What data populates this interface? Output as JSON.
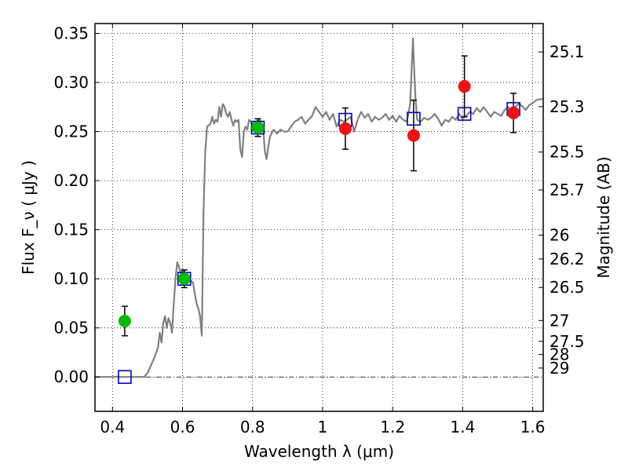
{
  "chart_data": {
    "type": "scatter",
    "xlabel": "Wavelength  λ (μm)",
    "ylabel": "Flux  F_ν  ( μJy )",
    "ylabel_right": "Magnitude (AB)",
    "xlim": [
      0.35,
      1.63
    ],
    "ylim": [
      -0.035,
      0.36
    ],
    "x_ticks": [
      0.4,
      0.6,
      0.8,
      1.0,
      1.2,
      1.4,
      1.6
    ],
    "x_tick_labels": [
      "0.4",
      "0.6",
      "0.8",
      "1",
      "1.2",
      "1.4",
      "1.6"
    ],
    "y_ticks": [
      0.0,
      0.05,
      0.1,
      0.15,
      0.2,
      0.25,
      0.3,
      0.35
    ],
    "y_tick_labels": [
      "0.00",
      "0.05",
      "0.10",
      "0.15",
      "0.20",
      "0.25",
      "0.30",
      "0.35"
    ],
    "mag_ticks": [
      {
        "label": "25.1",
        "flux": 0.3311
      },
      {
        "label": "25.3",
        "flux": 0.2754
      },
      {
        "label": "25.5",
        "flux": 0.2291
      },
      {
        "label": "25.7",
        "flux": 0.1905
      },
      {
        "label": "26",
        "flux": 0.1445
      },
      {
        "label": "26.2",
        "flux": 0.1202
      },
      {
        "label": "26.5",
        "flux": 0.0912
      },
      {
        "label": "27",
        "flux": 0.0575
      },
      {
        "label": "27.5",
        "flux": 0.0363
      },
      {
        "label": "28",
        "flux": 0.0229
      },
      {
        "label": "29",
        "flux": 0.0091
      }
    ],
    "grid": true,
    "series": [
      {
        "type": "line",
        "color": "#808080",
        "points": [
          [
            0.35,
            0.0
          ],
          [
            0.49,
            0.0
          ],
          [
            0.5,
            0.004
          ],
          [
            0.51,
            0.012
          ],
          [
            0.52,
            0.02
          ],
          [
            0.53,
            0.03
          ],
          [
            0.535,
            0.045
          ],
          [
            0.54,
            0.035
          ],
          [
            0.545,
            0.055
          ],
          [
            0.55,
            0.062
          ],
          [
            0.555,
            0.05
          ],
          [
            0.56,
            0.06
          ],
          [
            0.565,
            0.055
          ],
          [
            0.57,
            0.045
          ],
          [
            0.575,
            0.075
          ],
          [
            0.58,
            0.1
          ],
          [
            0.585,
            0.117
          ],
          [
            0.59,
            0.112
          ],
          [
            0.595,
            0.105
          ],
          [
            0.6,
            0.11
          ],
          [
            0.605,
            0.105
          ],
          [
            0.61,
            0.1
          ],
          [
            0.615,
            0.097
          ],
          [
            0.62,
            0.1
          ],
          [
            0.625,
            0.098
          ],
          [
            0.63,
            0.096
          ],
          [
            0.635,
            0.085
          ],
          [
            0.64,
            0.075
          ],
          [
            0.645,
            0.07
          ],
          [
            0.65,
            0.062
          ],
          [
            0.655,
            0.042
          ],
          [
            0.66,
            0.17
          ],
          [
            0.665,
            0.23
          ],
          [
            0.67,
            0.255
          ],
          [
            0.68,
            0.258
          ],
          [
            0.685,
            0.265
          ],
          [
            0.69,
            0.258
          ],
          [
            0.695,
            0.262
          ],
          [
            0.7,
            0.26
          ],
          [
            0.705,
            0.275
          ],
          [
            0.71,
            0.265
          ],
          [
            0.715,
            0.278
          ],
          [
            0.72,
            0.275
          ],
          [
            0.725,
            0.268
          ],
          [
            0.73,
            0.265
          ],
          [
            0.735,
            0.27
          ],
          [
            0.74,
            0.262
          ],
          [
            0.745,
            0.256
          ],
          [
            0.75,
            0.262
          ],
          [
            0.755,
            0.26
          ],
          [
            0.76,
            0.262
          ],
          [
            0.765,
            0.232
          ],
          [
            0.77,
            0.224
          ],
          [
            0.775,
            0.25
          ],
          [
            0.78,
            0.255
          ],
          [
            0.785,
            0.252
          ],
          [
            0.79,
            0.262
          ],
          [
            0.8,
            0.258
          ],
          [
            0.81,
            0.26
          ],
          [
            0.82,
            0.262
          ],
          [
            0.83,
            0.254
          ],
          [
            0.835,
            0.23
          ],
          [
            0.84,
            0.222
          ],
          [
            0.845,
            0.235
          ],
          [
            0.85,
            0.245
          ],
          [
            0.86,
            0.252
          ],
          [
            0.87,
            0.248
          ],
          [
            0.88,
            0.252
          ],
          [
            0.89,
            0.25
          ],
          [
            0.9,
            0.25
          ],
          [
            0.91,
            0.255
          ],
          [
            0.92,
            0.26
          ],
          [
            0.93,
            0.262
          ],
          [
            0.94,
            0.265
          ],
          [
            0.95,
            0.258
          ],
          [
            0.96,
            0.262
          ],
          [
            0.97,
            0.266
          ],
          [
            0.98,
            0.275
          ],
          [
            0.99,
            0.27
          ],
          [
            1.0,
            0.265
          ],
          [
            1.01,
            0.27
          ],
          [
            1.02,
            0.262
          ],
          [
            1.03,
            0.268
          ],
          [
            1.04,
            0.255
          ],
          [
            1.05,
            0.262
          ],
          [
            1.06,
            0.26
          ],
          [
            1.07,
            0.262
          ],
          [
            1.08,
            0.265
          ],
          [
            1.09,
            0.25
          ],
          [
            1.1,
            0.262
          ],
          [
            1.11,
            0.27
          ],
          [
            1.12,
            0.264
          ],
          [
            1.13,
            0.268
          ],
          [
            1.14,
            0.26
          ],
          [
            1.15,
            0.265
          ],
          [
            1.16,
            0.262
          ],
          [
            1.17,
            0.264
          ],
          [
            1.18,
            0.268
          ],
          [
            1.19,
            0.262
          ],
          [
            1.2,
            0.266
          ],
          [
            1.21,
            0.26
          ],
          [
            1.22,
            0.266
          ],
          [
            1.23,
            0.262
          ],
          [
            1.24,
            0.26
          ],
          [
            1.245,
            0.268
          ],
          [
            1.25,
            0.278
          ],
          [
            1.255,
            0.32
          ],
          [
            1.258,
            0.345
          ],
          [
            1.262,
            0.31
          ],
          [
            1.265,
            0.285
          ],
          [
            1.27,
            0.262
          ],
          [
            1.28,
            0.26
          ],
          [
            1.29,
            0.264
          ],
          [
            1.3,
            0.262
          ],
          [
            1.31,
            0.264
          ],
          [
            1.32,
            0.268
          ],
          [
            1.33,
            0.263
          ],
          [
            1.34,
            0.256
          ],
          [
            1.35,
            0.262
          ],
          [
            1.36,
            0.26
          ],
          [
            1.37,
            0.265
          ],
          [
            1.38,
            0.262
          ],
          [
            1.39,
            0.268
          ],
          [
            1.4,
            0.263
          ],
          [
            1.41,
            0.266
          ],
          [
            1.42,
            0.27
          ],
          [
            1.43,
            0.268
          ],
          [
            1.44,
            0.274
          ],
          [
            1.45,
            0.27
          ],
          [
            1.46,
            0.275
          ],
          [
            1.47,
            0.27
          ],
          [
            1.48,
            0.265
          ],
          [
            1.49,
            0.27
          ],
          [
            1.5,
            0.268
          ],
          [
            1.51,
            0.266
          ],
          [
            1.52,
            0.272
          ],
          [
            1.53,
            0.275
          ],
          [
            1.54,
            0.272
          ],
          [
            1.55,
            0.275
          ],
          [
            1.56,
            0.278
          ],
          [
            1.57,
            0.276
          ],
          [
            1.58,
            0.272
          ],
          [
            1.59,
            0.277
          ],
          [
            1.6,
            0.279
          ],
          [
            1.61,
            0.282
          ],
          [
            1.62,
            0.283
          ],
          [
            1.63,
            0.283
          ]
        ]
      },
      {
        "type": "scatter",
        "marker": "square",
        "color": "#0000cc",
        "x": [
          0.435,
          0.605,
          0.815,
          1.065,
          1.26,
          1.405,
          1.545
        ],
        "y": [
          0.0,
          0.1,
          0.254,
          0.262,
          0.263,
          0.268,
          0.273
        ]
      },
      {
        "type": "scatter",
        "marker": "circle",
        "color": "#00bb00",
        "x": [
          0.435,
          0.605,
          0.815
        ],
        "y": [
          0.057,
          0.1,
          0.254
        ],
        "yerr": [
          0.015,
          0.009,
          0.009
        ]
      },
      {
        "type": "scatter",
        "marker": "circle",
        "color": "#ee1111",
        "x": [
          1.065,
          1.26,
          1.405,
          1.545
        ],
        "y": [
          0.253,
          0.246,
          0.296,
          0.269
        ],
        "yerr": [
          0.021,
          0.036,
          0.031,
          0.02
        ]
      }
    ]
  }
}
